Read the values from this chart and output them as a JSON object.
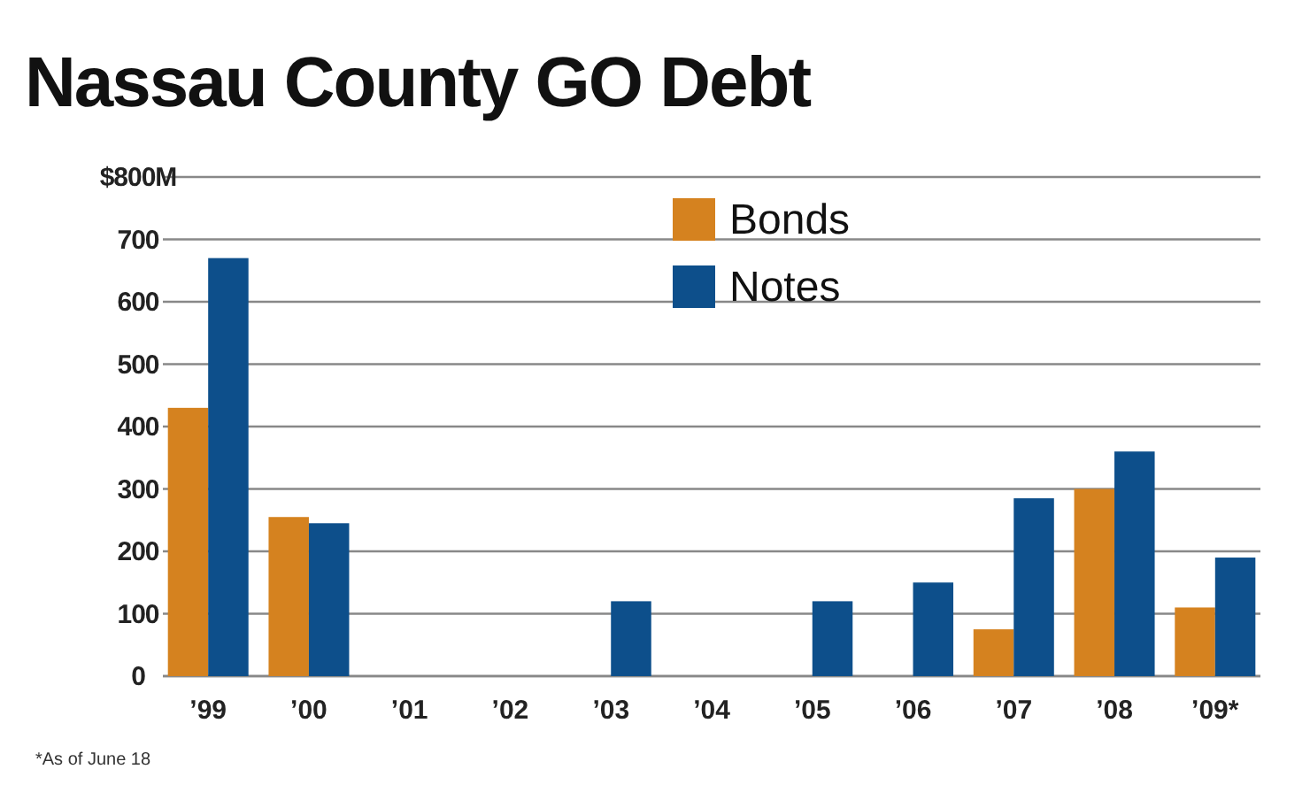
{
  "chart_data": {
    "type": "bar",
    "title": "Nassau County GO Debt",
    "categories": [
      "’99",
      "’00",
      "’01",
      "’02",
      "’03",
      "’04",
      "’05",
      "’06",
      "’07",
      "’08",
      "’09*"
    ],
    "series": [
      {
        "name": "Bonds",
        "color": "#d5821f",
        "values": [
          430,
          255,
          0,
          0,
          0,
          0,
          0,
          0,
          75,
          300,
          110
        ]
      },
      {
        "name": "Notes",
        "color": "#0d4f8b",
        "values": [
          670,
          245,
          0,
          0,
          120,
          0,
          120,
          150,
          285,
          360,
          190
        ]
      }
    ],
    "ylim": [
      0,
      800
    ],
    "yticks": [
      0,
      100,
      200,
      300,
      400,
      500,
      600,
      700,
      {
        "value": 800,
        "label": "$800M"
      }
    ],
    "grid": "y",
    "legend": "top",
    "annotations": [
      "*As of June 18"
    ]
  }
}
